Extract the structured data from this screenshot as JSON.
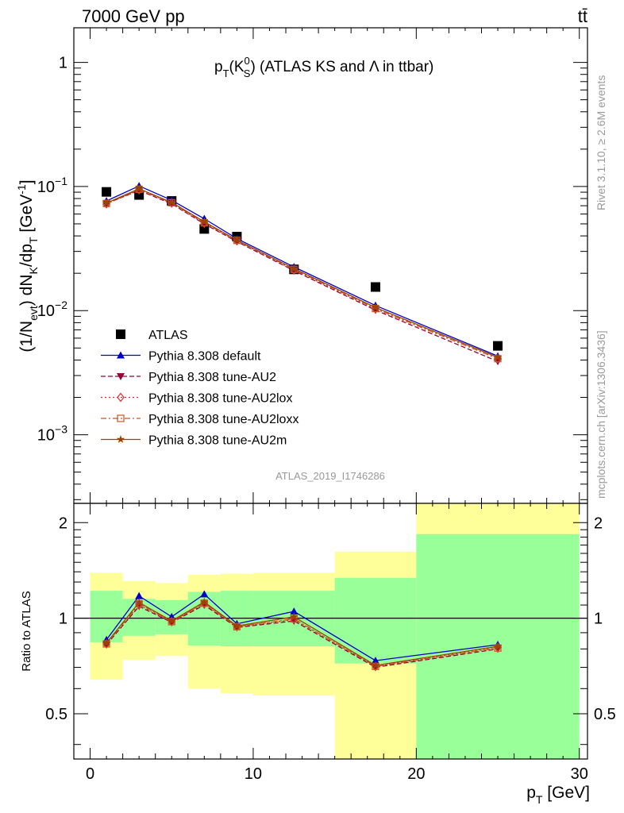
{
  "header": {
    "left": "7000 GeV pp",
    "right": "tt̄"
  },
  "side_text": {
    "rivet": "Rivet 3.1.10, ≥ 2.6M events",
    "mcplots": "mcplots.cern.ch [arXiv:1306.3436]"
  },
  "analysis_label": "ATLAS_2019_I1746286",
  "colors": {
    "band_green": "#99ff99",
    "band_yellow": "#ffff99",
    "data": "#000000",
    "default": "#0000cc",
    "au2": "#990033",
    "au2lox": "#cc3333",
    "au2loxx": "#cc5522",
    "au2m": "#994400"
  },
  "chart_data": [
    {
      "type": "scatter",
      "panel": "main",
      "title_parts": {
        "p": "p",
        "T": "T",
        "paren_open": "(K",
        "sup": "0",
        "sub": "S",
        "rest": ") (ATLAS KS and Λ in ttbar)"
      },
      "ylabel_parts": {
        "a": "(1/N",
        "evt": "evt",
        "b": ") dN",
        "K": "K",
        "c": "/dp",
        "T": "T",
        "d": " [GeV",
        "exp": "-1",
        "e": "]"
      },
      "y_log": true,
      "ylim": [
        0.00028,
        1.9
      ],
      "xlim": [
        -1,
        30.5
      ],
      "y_ticks": [
        {
          "v": 1,
          "base": "1",
          "exp": ""
        },
        {
          "v": 0.1,
          "base": "10",
          "exp": "−1"
        },
        {
          "v": 0.01,
          "base": "10",
          "exp": "−2"
        },
        {
          "v": 0.001,
          "base": "10",
          "exp": "−3"
        }
      ],
      "x": [
        1,
        3,
        5,
        7,
        9,
        12.5,
        17.5,
        25
      ],
      "series": [
        {
          "name": "ATLAS",
          "key": "data",
          "marker": "square",
          "dash": "",
          "values": [
            0.0905,
            0.0855,
            0.0765,
            0.0455,
            0.0395,
            0.0215,
            0.0155,
            0.0052
          ]
        },
        {
          "name": "Pythia 8.308 default",
          "key": "default",
          "marker": "triangle-up",
          "dash": "",
          "values": [
            0.0765,
            0.101,
            0.0775,
            0.055,
            0.038,
            0.0225,
            0.011,
            0.0043
          ]
        },
        {
          "name": "Pythia 8.308 tune-AU2",
          "key": "au2",
          "marker": "triangle-down",
          "dash": "6,3",
          "values": [
            0.073,
            0.093,
            0.0725,
            0.05,
            0.036,
            0.021,
            0.0101,
            0.0039
          ]
        },
        {
          "name": "Pythia 8.308 tune-AU2lox",
          "key": "au2lox",
          "marker": "diamond",
          "dash": "2,3",
          "values": [
            0.0725,
            0.094,
            0.0735,
            0.0505,
            0.0365,
            0.0212,
            0.0103,
            0.0041
          ]
        },
        {
          "name": "Pythia 8.308 tune-AU2loxx",
          "key": "au2loxx",
          "marker": "square-open",
          "dash": "7,3,2,3",
          "values": [
            0.073,
            0.095,
            0.074,
            0.051,
            0.0368,
            0.0215,
            0.0104,
            0.0041
          ]
        },
        {
          "name": "Pythia 8.308 tune-AU2m",
          "key": "au2m",
          "marker": "star",
          "dash": "",
          "values": [
            0.0735,
            0.096,
            0.0745,
            0.052,
            0.037,
            0.0218,
            0.0106,
            0.0042
          ]
        }
      ]
    },
    {
      "type": "line",
      "panel": "ratio",
      "ylabel": "Ratio to ATLAS",
      "xlabel_parts": {
        "p": "p",
        "T": "T",
        "unit": " [GeV]"
      },
      "y_log": true,
      "ylim": [
        0.36,
        2.3
      ],
      "xlim": [
        -1,
        30.5
      ],
      "y_ticks": [
        0.5,
        1,
        2
      ],
      "x_ticks": [
        0,
        10,
        20,
        30
      ],
      "reference": 1,
      "bins": [
        {
          "lo": 0,
          "hi": 2,
          "inner": [
            0.84,
            1.22
          ],
          "outer": [
            0.64,
            1.39
          ]
        },
        {
          "lo": 2,
          "hi": 4,
          "inner": [
            0.88,
            1.15
          ],
          "outer": [
            0.74,
            1.31
          ]
        },
        {
          "lo": 4,
          "hi": 6,
          "inner": [
            0.89,
            1.14
          ],
          "outer": [
            0.76,
            1.29
          ]
        },
        {
          "lo": 6,
          "hi": 8,
          "inner": [
            0.82,
            1.21
          ],
          "outer": [
            0.6,
            1.37
          ]
        },
        {
          "lo": 8,
          "hi": 10,
          "inner": [
            0.815,
            1.22
          ],
          "outer": [
            0.58,
            1.38
          ]
        },
        {
          "lo": 10,
          "hi": 15,
          "inner": [
            0.815,
            1.22
          ],
          "outer": [
            0.57,
            1.39
          ]
        },
        {
          "lo": 15,
          "hi": 20,
          "inner": [
            0.72,
            1.34
          ],
          "outer": [
            0.36,
            1.62
          ]
        },
        {
          "lo": 20,
          "hi": 30,
          "inner": [
            0.36,
            1.84
          ],
          "outer": [
            0.36,
            2.3
          ]
        }
      ],
      "x": [
        1,
        3,
        5,
        7,
        9,
        12.5,
        17.5,
        25
      ],
      "series": [
        {
          "name": "Pythia 8.308 default",
          "key": "default",
          "values": [
            0.855,
            1.175,
            1.01,
            1.19,
            0.96,
            1.05,
            0.735,
            0.825
          ]
        },
        {
          "name": "Pythia 8.308 tune-AU2",
          "key": "au2",
          "values": [
            0.825,
            1.09,
            0.97,
            1.1,
            0.935,
            0.98,
            0.7,
            0.8
          ]
        },
        {
          "name": "Pythia 8.308 tune-AU2lox",
          "key": "au2lox",
          "values": [
            0.83,
            1.1,
            0.975,
            1.11,
            0.94,
            0.99,
            0.705,
            0.81
          ]
        },
        {
          "name": "Pythia 8.308 tune-AU2loxx",
          "key": "au2loxx",
          "values": [
            0.83,
            1.11,
            0.975,
            1.115,
            0.94,
            0.995,
            0.705,
            0.805
          ]
        },
        {
          "name": "Pythia 8.308 tune-AU2m",
          "key": "au2m",
          "values": [
            0.835,
            1.12,
            0.98,
            1.125,
            0.945,
            1.01,
            0.71,
            0.815
          ]
        }
      ]
    }
  ]
}
